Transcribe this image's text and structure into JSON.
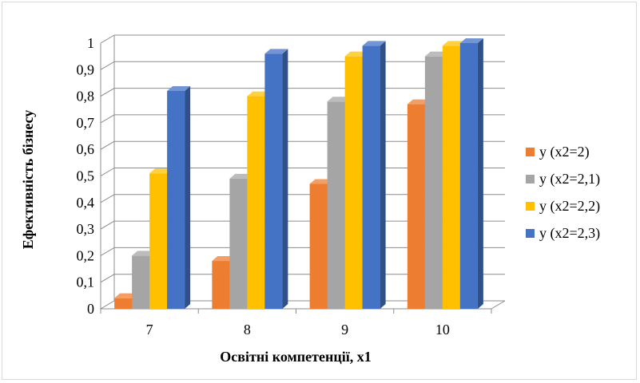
{
  "chart_data": {
    "type": "bar",
    "variant": "3d-clustered-column",
    "title": "",
    "xlabel": "Освітні компетенції, x1",
    "ylabel": "Ефективність бізнесу",
    "categories": [
      "7",
      "8",
      "9",
      "10"
    ],
    "ylim": [
      0,
      1
    ],
    "yticks": [
      "0",
      "0,1",
      "0,2",
      "0,3",
      "0,4",
      "0,5",
      "0,6",
      "0,7",
      "0,8",
      "0,9",
      "1"
    ],
    "grid": true,
    "legend_position": "right",
    "series": [
      {
        "name": "y (x2=2)",
        "color": "#ed7d31",
        "values": [
          0.04,
          0.18,
          0.47,
          0.77
        ]
      },
      {
        "name": "y (x2=2,1)",
        "color": "#a5a5a5",
        "values": [
          0.2,
          0.49,
          0.78,
          0.95
        ]
      },
      {
        "name": "y (x2=2,2)",
        "color": "#ffc000",
        "values": [
          0.51,
          0.8,
          0.95,
          0.99
        ]
      },
      {
        "name": "y (x2=2,3)",
        "color": "#4472c4",
        "values": [
          0.82,
          0.96,
          0.99,
          1.0
        ]
      }
    ]
  }
}
